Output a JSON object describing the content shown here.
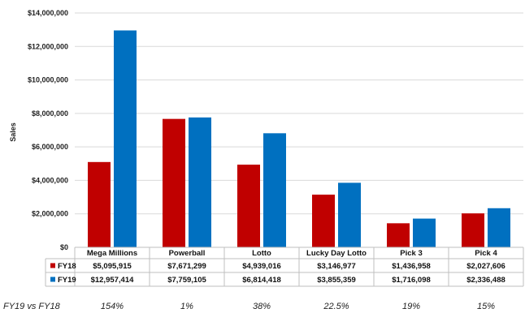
{
  "chart_data": {
    "type": "bar",
    "title": "",
    "ylabel": "Sales",
    "xlabel": "",
    "ylim": [
      0,
      14000000
    ],
    "yticks": [
      0,
      2000000,
      4000000,
      6000000,
      8000000,
      10000000,
      12000000,
      14000000
    ],
    "ytick_labels": [
      "$0",
      "$2,000,000",
      "$4,000,000",
      "$6,000,000",
      "$8,000,000",
      "$10,000,000",
      "$12,000,000",
      "$14,000,000"
    ],
    "categories": [
      "Mega Millions",
      "Powerball",
      "Lotto",
      "Lucky Day Lotto",
      "Pick 3",
      "Pick 4"
    ],
    "series": [
      {
        "name": "FY18",
        "color": "#c00000",
        "values": [
          5095915,
          7671299,
          4939016,
          3146977,
          1436958,
          2027606
        ],
        "labels": [
          "$5,095,915",
          "$7,671,299",
          "$4,939,016",
          "$3,146,977",
          "$1,436,958",
          "$2,027,606"
        ]
      },
      {
        "name": "FY19",
        "color": "#0070c0",
        "values": [
          12957414,
          7759105,
          6814418,
          3855359,
          1716098,
          2336488
        ],
        "labels": [
          "$12,957,414",
          "$7,759,105",
          "$6,814,418",
          "$3,855,359",
          "$1,716,098",
          "$2,336,488"
        ]
      }
    ],
    "grid": true,
    "data_table": true
  },
  "comparison": {
    "label": "FY19 vs FY18",
    "values": [
      "154%",
      "1%",
      "38%",
      "22.5%",
      "19%",
      "15%"
    ]
  }
}
